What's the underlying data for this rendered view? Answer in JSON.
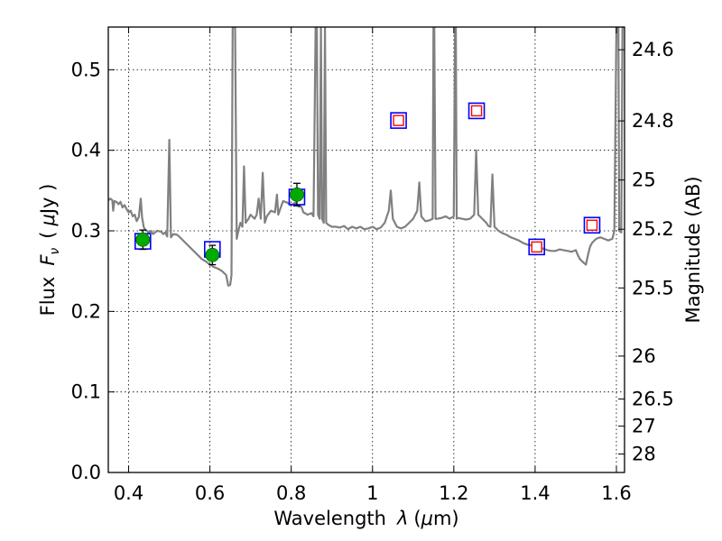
{
  "chart_data": {
    "type": "scatter",
    "xlabel_text": "Wavelength",
    "xlabel_symbol": "λ",
    "xlabel_unit_open": "(",
    "xlabel_unit_mu": "μ",
    "xlabel_unit_rest": "m)",
    "ylabel_text": "Flux",
    "ylabel_symbol": "F",
    "ylabel_sub": "ν",
    "ylabel_unit_open": "(",
    "ylabel_unit_mu": "μ",
    "ylabel_unit_rest": "Jy )",
    "y2label": "Magnitude (AB)",
    "xlim": [
      0.35,
      1.62
    ],
    "ylim": [
      0.0,
      0.553
    ],
    "grid": true,
    "xticks": [
      {
        "value": 0.4,
        "label": "0.4"
      },
      {
        "value": 0.6,
        "label": "0.6"
      },
      {
        "value": 0.8,
        "label": "0.8"
      },
      {
        "value": 1.0,
        "label": "1"
      },
      {
        "value": 1.2,
        "label": "1.2"
      },
      {
        "value": 1.4,
        "label": "1.4"
      },
      {
        "value": 1.6,
        "label": "1.6"
      }
    ],
    "yticks": [
      {
        "value": 0.0,
        "label": "0.0"
      },
      {
        "value": 0.1,
        "label": "0.1"
      },
      {
        "value": 0.2,
        "label": "0.2"
      },
      {
        "value": 0.3,
        "label": "0.3"
      },
      {
        "value": 0.4,
        "label": "0.4"
      },
      {
        "value": 0.5,
        "label": "0.5"
      }
    ],
    "magnitude_ticks": [
      {
        "label": "24.6",
        "flux": 0.5248
      },
      {
        "label": "24.8",
        "flux": 0.4365
      },
      {
        "label": "25",
        "flux": 0.3631
      },
      {
        "label": "25.2",
        "flux": 0.302
      },
      {
        "label": "25.5",
        "flux": 0.2291
      },
      {
        "label": "26",
        "flux": 0.1445
      },
      {
        "label": "26.5",
        "flux": 0.0912
      },
      {
        "label": "27",
        "flux": 0.0575
      },
      {
        "label": "28",
        "flux": 0.0229
      }
    ],
    "series": [
      {
        "kind": "model_spectrum",
        "color": "#808080",
        "points": [
          [
            0.35,
            0.338
          ],
          [
            0.355,
            0.34
          ],
          [
            0.36,
            0.338
          ],
          [
            0.362,
            0.325
          ],
          [
            0.365,
            0.337
          ],
          [
            0.37,
            0.336
          ],
          [
            0.375,
            0.333
          ],
          [
            0.38,
            0.336
          ],
          [
            0.385,
            0.329
          ],
          [
            0.39,
            0.332
          ],
          [
            0.395,
            0.327
          ],
          [
            0.4,
            0.323
          ],
          [
            0.405,
            0.325
          ],
          [
            0.41,
            0.318
          ],
          [
            0.415,
            0.32
          ],
          [
            0.42,
            0.312
          ],
          [
            0.425,
            0.317
          ],
          [
            0.43,
            0.34
          ],
          [
            0.433,
            0.317
          ],
          [
            0.437,
            0.305
          ],
          [
            0.44,
            0.302
          ],
          [
            0.445,
            0.3
          ],
          [
            0.45,
            0.298
          ],
          [
            0.455,
            0.3
          ],
          [
            0.46,
            0.296
          ],
          [
            0.465,
            0.298
          ],
          [
            0.47,
            0.3
          ],
          [
            0.48,
            0.299
          ],
          [
            0.485,
            0.296
          ],
          [
            0.49,
            0.298
          ],
          [
            0.495,
            0.293
          ],
          [
            0.5,
            0.413
          ],
          [
            0.504,
            0.292
          ],
          [
            0.51,
            0.296
          ],
          [
            0.52,
            0.295
          ],
          [
            0.53,
            0.29
          ],
          [
            0.54,
            0.285
          ],
          [
            0.55,
            0.28
          ],
          [
            0.56,
            0.275
          ],
          [
            0.57,
            0.27
          ],
          [
            0.58,
            0.265
          ],
          [
            0.59,
            0.262
          ],
          [
            0.6,
            0.258
          ],
          [
            0.61,
            0.255
          ],
          [
            0.62,
            0.253
          ],
          [
            0.63,
            0.25
          ],
          [
            0.64,
            0.245
          ],
          [
            0.645,
            0.232
          ],
          [
            0.65,
            0.233
          ],
          [
            0.653,
            0.245
          ],
          [
            0.656,
            0.553
          ],
          [
            0.662,
            0.553
          ],
          [
            0.666,
            0.29
          ],
          [
            0.67,
            0.3
          ],
          [
            0.675,
            0.31
          ],
          [
            0.68,
            0.305
          ],
          [
            0.684,
            0.38
          ],
          [
            0.688,
            0.31
          ],
          [
            0.695,
            0.315
          ],
          [
            0.7,
            0.32
          ],
          [
            0.71,
            0.315
          ],
          [
            0.715,
            0.32
          ],
          [
            0.72,
            0.34
          ],
          [
            0.725,
            0.315
          ],
          [
            0.73,
            0.372
          ],
          [
            0.735,
            0.31
          ],
          [
            0.74,
            0.318
          ],
          [
            0.75,
            0.325
          ],
          [
            0.76,
            0.323
          ],
          [
            0.765,
            0.345
          ],
          [
            0.768,
            0.32
          ],
          [
            0.775,
            0.33
          ],
          [
            0.78,
            0.337
          ],
          [
            0.79,
            0.335
          ],
          [
            0.8,
            0.332
          ],
          [
            0.81,
            0.335
          ],
          [
            0.818,
            0.33
          ],
          [
            0.825,
            0.33
          ],
          [
            0.83,
            0.323
          ],
          [
            0.84,
            0.32
          ],
          [
            0.85,
            0.322
          ],
          [
            0.855,
            0.318
          ],
          [
            0.86,
            0.553
          ],
          [
            0.863,
            0.553
          ],
          [
            0.866,
            0.32
          ],
          [
            0.87,
            0.315
          ],
          [
            0.873,
            0.553
          ],
          [
            0.876,
            0.315
          ],
          [
            0.88,
            0.31
          ],
          [
            0.883,
            0.553
          ],
          [
            0.886,
            0.31
          ],
          [
            0.89,
            0.308
          ],
          [
            0.9,
            0.305
          ],
          [
            0.91,
            0.305
          ],
          [
            0.92,
            0.304
          ],
          [
            0.93,
            0.306
          ],
          [
            0.94,
            0.302
          ],
          [
            0.95,
            0.305
          ],
          [
            0.96,
            0.303
          ],
          [
            0.97,
            0.305
          ],
          [
            0.98,
            0.302
          ],
          [
            0.99,
            0.303
          ],
          [
            1.0,
            0.305
          ],
          [
            1.01,
            0.302
          ],
          [
            1.02,
            0.304
          ],
          [
            1.03,
            0.31
          ],
          [
            1.04,
            0.325
          ],
          [
            1.045,
            0.35
          ],
          [
            1.05,
            0.315
          ],
          [
            1.06,
            0.305
          ],
          [
            1.07,
            0.303
          ],
          [
            1.08,
            0.305
          ],
          [
            1.09,
            0.31
          ],
          [
            1.1,
            0.315
          ],
          [
            1.11,
            0.325
          ],
          [
            1.115,
            0.36
          ],
          [
            1.12,
            0.318
          ],
          [
            1.13,
            0.312
          ],
          [
            1.14,
            0.313
          ],
          [
            1.148,
            0.315
          ],
          [
            1.15,
            0.553
          ],
          [
            1.152,
            0.553
          ],
          [
            1.155,
            0.315
          ],
          [
            1.16,
            0.315
          ],
          [
            1.17,
            0.316
          ],
          [
            1.18,
            0.318
          ],
          [
            1.19,
            0.315
          ],
          [
            1.2,
            0.318
          ],
          [
            1.203,
            0.553
          ],
          [
            1.205,
            0.553
          ],
          [
            1.207,
            0.315
          ],
          [
            1.21,
            0.316
          ],
          [
            1.22,
            0.315
          ],
          [
            1.23,
            0.314
          ],
          [
            1.24,
            0.315
          ],
          [
            1.25,
            0.32
          ],
          [
            1.255,
            0.4
          ],
          [
            1.26,
            0.32
          ],
          [
            1.27,
            0.315
          ],
          [
            1.28,
            0.31
          ],
          [
            1.285,
            0.306
          ],
          [
            1.29,
            0.305
          ],
          [
            1.295,
            0.37
          ],
          [
            1.3,
            0.305
          ],
          [
            1.31,
            0.3
          ],
          [
            1.32,
            0.297
          ],
          [
            1.33,
            0.295
          ],
          [
            1.34,
            0.292
          ],
          [
            1.35,
            0.29
          ],
          [
            1.36,
            0.288
          ],
          [
            1.37,
            0.285
          ],
          [
            1.38,
            0.283
          ],
          [
            1.39,
            0.282
          ],
          [
            1.4,
            0.28
          ],
          [
            1.41,
            0.279
          ],
          [
            1.42,
            0.278
          ],
          [
            1.43,
            0.276
          ],
          [
            1.44,
            0.275
          ],
          [
            1.45,
            0.275
          ],
          [
            1.46,
            0.277
          ],
          [
            1.47,
            0.276
          ],
          [
            1.48,
            0.275
          ],
          [
            1.49,
            0.274
          ],
          [
            1.5,
            0.276
          ],
          [
            1.505,
            0.27
          ],
          [
            1.51,
            0.265
          ],
          [
            1.52,
            0.26
          ],
          [
            1.525,
            0.258
          ],
          [
            1.53,
            0.27
          ],
          [
            1.535,
            0.28
          ],
          [
            1.54,
            0.285
          ],
          [
            1.55,
            0.29
          ],
          [
            1.56,
            0.292
          ],
          [
            1.57,
            0.29
          ],
          [
            1.58,
            0.288
          ],
          [
            1.59,
            0.29
          ],
          [
            1.595,
            0.3
          ],
          [
            1.6,
            0.553
          ],
          [
            1.605,
            0.553
          ],
          [
            1.607,
            0.3
          ],
          [
            1.612,
            0.298
          ],
          [
            1.615,
            0.553
          ],
          [
            1.62,
            0.553
          ]
        ]
      },
      {
        "kind": "observed",
        "marker": "green-circle-with-errorbar",
        "color": "#00aa00",
        "points": [
          {
            "x": 0.435,
            "y": 0.289,
            "err": 0.012
          },
          {
            "x": 0.606,
            "y": 0.27,
            "err": 0.012
          },
          {
            "x": 0.814,
            "y": 0.345,
            "err": 0.014
          }
        ]
      },
      {
        "kind": "synthetic",
        "marker": "blue-square",
        "color": "#0000ff",
        "points": [
          {
            "x": 0.435,
            "y": 0.287
          },
          {
            "x": 0.606,
            "y": 0.277
          },
          {
            "x": 0.814,
            "y": 0.342
          },
          {
            "x": 1.064,
            "y": 0.437
          },
          {
            "x": 1.256,
            "y": 0.449
          },
          {
            "x": 1.404,
            "y": 0.28
          },
          {
            "x": 1.54,
            "y": 0.307
          }
        ]
      },
      {
        "kind": "predicted",
        "marker": "red-square",
        "color": "#ff0000",
        "points": [
          {
            "x": 1.064,
            "y": 0.437
          },
          {
            "x": 1.256,
            "y": 0.449
          },
          {
            "x": 1.404,
            "y": 0.28
          },
          {
            "x": 1.54,
            "y": 0.307
          }
        ]
      }
    ]
  }
}
